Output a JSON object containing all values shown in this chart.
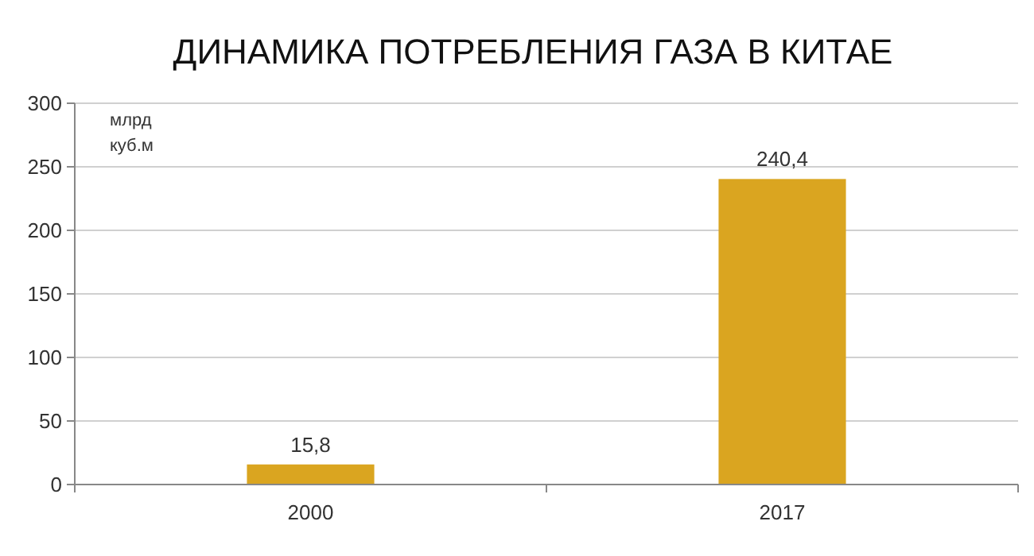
{
  "chart_data": {
    "type": "bar",
    "title": "ДИНАМИКА ПОТРЕБЛЕНИЯ ГАЗА В КИТАЕ",
    "ylabel": "млрд куб.м",
    "categories": [
      "2000",
      "2017"
    ],
    "values": [
      15.8,
      240.4
    ],
    "value_labels": [
      "15,8",
      "240,4"
    ],
    "color": "#daa520",
    "ylim": [
      0,
      300
    ],
    "yticks": [
      0,
      50,
      100,
      150,
      200,
      250,
      300
    ],
    "grid": "y"
  }
}
